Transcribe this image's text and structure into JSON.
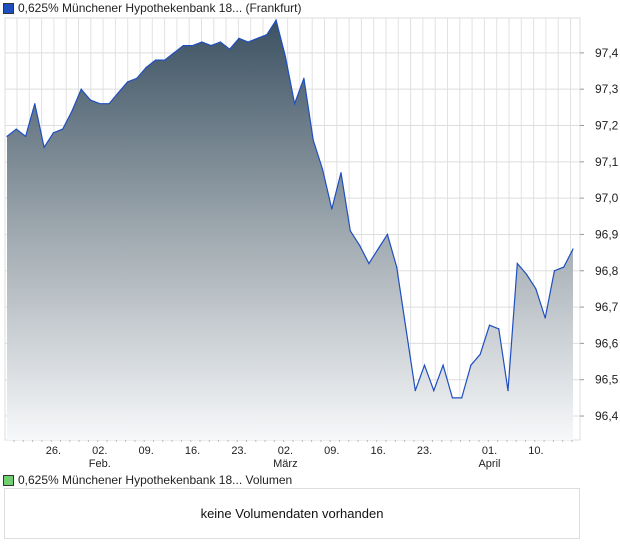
{
  "chart_data": {
    "type": "area",
    "title": "0,625% Münchener Hypothekenbank 18... (Frankfurt)",
    "series_color": "#1f4fbf",
    "ylim": [
      96.334,
      97.496
    ],
    "yticks": [
      "97,4",
      "97,3",
      "97,2",
      "97,1",
      "97,0",
      "96,9",
      "96,8",
      "96,7",
      "96,6",
      "96,5",
      "96,4"
    ],
    "ytick_values": [
      97.4,
      97.3,
      97.2,
      97.1,
      97.0,
      96.9,
      96.8,
      96.7,
      96.6,
      96.5,
      96.4
    ],
    "xticks": [
      {
        "label": "26.",
        "sub": "",
        "index": 5
      },
      {
        "label": "02.",
        "sub": "Feb.",
        "index": 10
      },
      {
        "label": "09.",
        "sub": "",
        "index": 15
      },
      {
        "label": "16.",
        "sub": "",
        "index": 20
      },
      {
        "label": "23.",
        "sub": "",
        "index": 25
      },
      {
        "label": "02.",
        "sub": "März",
        "index": 30
      },
      {
        "label": "09.",
        "sub": "",
        "index": 35
      },
      {
        "label": "16.",
        "sub": "",
        "index": 40
      },
      {
        "label": "23.",
        "sub": "",
        "index": 45
      },
      {
        "label": "01.",
        "sub": "April",
        "index": 52
      },
      {
        "label": "10.",
        "sub": "",
        "index": 57
      }
    ],
    "values": [
      97.17,
      97.19,
      97.17,
      97.26,
      97.14,
      97.18,
      97.19,
      97.24,
      97.3,
      97.27,
      97.26,
      97.26,
      97.29,
      97.32,
      97.33,
      97.36,
      97.38,
      97.38,
      97.4,
      97.42,
      97.42,
      97.43,
      97.42,
      97.43,
      97.41,
      97.44,
      97.43,
      97.44,
      97.45,
      97.49,
      97.39,
      97.26,
      97.33,
      97.16,
      97.08,
      96.97,
      97.07,
      96.91,
      96.87,
      96.82,
      96.86,
      96.9,
      96.81,
      96.64,
      96.47,
      96.54,
      96.47,
      96.54,
      96.45,
      96.45,
      96.54,
      96.57,
      96.65,
      96.64,
      96.47,
      96.82,
      96.79,
      96.75,
      96.67,
      96.8,
      96.81,
      96.86
    ]
  },
  "legend_price": "0,625% Münchener Hypothekenbank 18... (Frankfurt)",
  "legend_price_color": "#1f4fbf",
  "legend_volume": "0,625% Münchener Hypothekenbank 18... Volumen",
  "legend_volume_color": "#6fcf6f",
  "volume_message": "keine Volumendaten vorhanden"
}
